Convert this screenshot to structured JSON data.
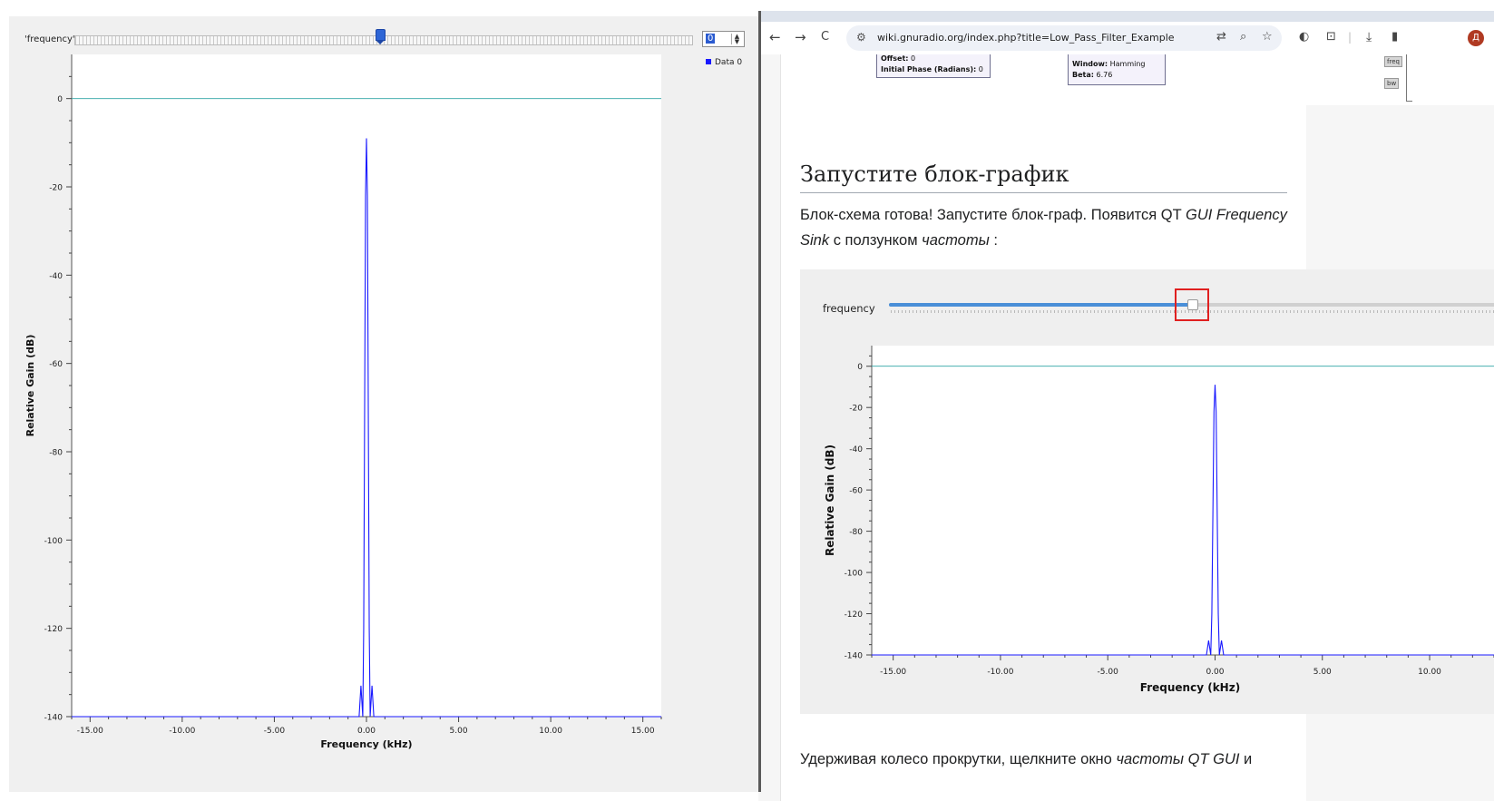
{
  "qt_window": {
    "slider_label": "'frequency'",
    "spin_value": "0",
    "legend_label": "Data 0",
    "chart_data": {
      "type": "line",
      "xlabel": "Frequency (kHz)",
      "ylabel": "Relative Gain (dB)",
      "xlim": [
        -16,
        16
      ],
      "ylim": [
        -140,
        10
      ],
      "x_ticks": [
        "-15.00",
        "-10.00",
        "-5.00",
        "0.00",
        "5.00",
        "10.00",
        "15.00"
      ],
      "y_ticks": [
        "0",
        "-20",
        "-40",
        "-60",
        "-80",
        "-100",
        "-120",
        "-140"
      ],
      "series": [
        {
          "name": "Data 0",
          "color": "#1818ff",
          "x": [
            -16,
            -0.4,
            -0.3,
            -0.2,
            -0.15,
            -0.05,
            0,
            0.05,
            0.15,
            0.2,
            0.3,
            0.4,
            16
          ],
          "y": [
            -140,
            -140,
            -133,
            -140,
            -120,
            -22,
            -9,
            -22,
            -120,
            -140,
            -133,
            -140,
            -140
          ]
        },
        {
          "name": "",
          "color": "#2ea3a3",
          "x": [
            -16,
            16
          ],
          "y": [
            0,
            0
          ]
        }
      ]
    }
  },
  "browser": {
    "url": "wiki.gnuradio.org/index.php?title=Low_Pass_Filter_Example",
    "avatar_letter": "Д",
    "nav_back": "←",
    "nav_forward": "→",
    "nav_reload": "C",
    "icons": [
      "translate-icon",
      "zoom-icon",
      "star-icon",
      "extension-icon",
      "puzzle-icon",
      "download-icon",
      "sidepanel-icon"
    ],
    "block1": {
      "k1": "Offset:",
      "v1": " 0",
      "k2": "Initial Phase (Radians):",
      "v2": " 0"
    },
    "block2": {
      "k1": "Window:",
      "v1": " Hamming",
      "k2": "Beta:",
      "v2": " 6.76"
    },
    "chip_freq": "freq",
    "chip_bw": "bw",
    "heading": "Запустите блок-график",
    "para": {
      "p1": "Блок-схема готова! Запустите блок-граф. Появится QT ",
      "i1": "GUI Frequency Sink",
      "p2": " с ползунком ",
      "i2": "частоты",
      "p3": " :"
    },
    "embed": {
      "slider_label": "frequency",
      "slider_fraction": 0.5,
      "chart_data": {
        "type": "line",
        "xlabel": "Frequency (kHz)",
        "ylabel": "Relative Gain (dB)",
        "xlim": [
          -16,
          13
        ],
        "ylim": [
          -140,
          10
        ],
        "x_ticks": [
          "-15.00",
          "-10.00",
          "-5.00",
          "0.00",
          "5.00",
          "10.00"
        ],
        "y_ticks": [
          "0",
          "-20",
          "-40",
          "-60",
          "-80",
          "-100",
          "-120",
          "-140"
        ],
        "series": [
          {
            "name": "",
            "color": "#1818ff",
            "x": [
              -16,
              -0.4,
              -0.3,
              -0.2,
              -0.15,
              -0.05,
              0,
              0.05,
              0.15,
              0.2,
              0.3,
              0.4,
              13
            ],
            "y": [
              -140,
              -140,
              -133,
              -140,
              -120,
              -22,
              -9,
              -22,
              -120,
              -140,
              -133,
              -140,
              -140
            ]
          },
          {
            "name": "",
            "color": "#2ea3a3",
            "x": [
              -16,
              13
            ],
            "y": [
              0,
              0
            ]
          }
        ]
      }
    },
    "bottom": {
      "t1": "Удерживая колесо прокрутки, щелкните окно ",
      "i1": "частоты QT GUI",
      "t2": " и"
    }
  }
}
